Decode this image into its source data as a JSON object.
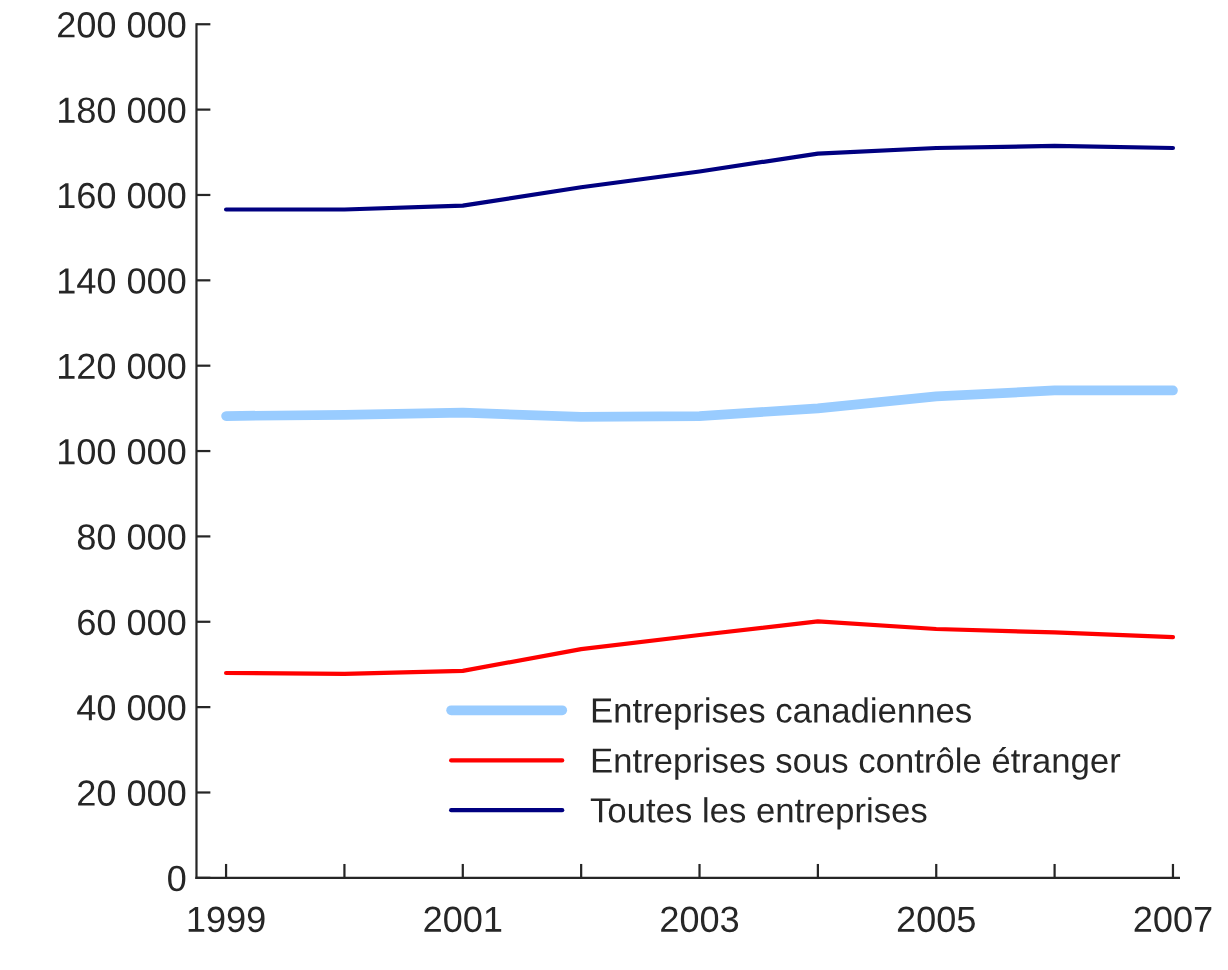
{
  "chart_data": {
    "type": "line",
    "categories": [
      "1999",
      null,
      "2001",
      null,
      "2003",
      null,
      "2005",
      null,
      "2007"
    ],
    "series": [
      {
        "name": "Entreprises canadiennes",
        "color": "#99ccff",
        "values": [
          108200,
          108500,
          109000,
          108000,
          108200,
          110000,
          112800,
          114200,
          114200
        ]
      },
      {
        "name": "Entreprises sous contrôle étranger",
        "color": "#ff0000",
        "values": [
          48000,
          47800,
          48500,
          53600,
          56900,
          60100,
          58300,
          57500,
          56400
        ]
      },
      {
        "name": "Toutes les entreprises",
        "color": "#000080",
        "values": [
          156600,
          156600,
          157500,
          161800,
          165500,
          169700,
          171000,
          171500,
          171000
        ]
      }
    ],
    "ylim": [
      0,
      200000
    ],
    "yticks": [
      {
        "value": 0,
        "label": "0"
      },
      {
        "value": 20000,
        "label": "20 000"
      },
      {
        "value": 40000,
        "label": "40 000"
      },
      {
        "value": 60000,
        "label": "60 000"
      },
      {
        "value": 80000,
        "label": "80 000"
      },
      {
        "value": 100000,
        "label": "100 000"
      },
      {
        "value": 120000,
        "label": "120 000"
      },
      {
        "value": 140000,
        "label": "140 000"
      },
      {
        "value": 160000,
        "label": "160 000"
      },
      {
        "value": 180000,
        "label": "180 000"
      },
      {
        "value": 200000,
        "label": "200 000"
      }
    ],
    "legend": "bottom",
    "grid": false,
    "marker": "none",
    "line_style": "solid"
  }
}
